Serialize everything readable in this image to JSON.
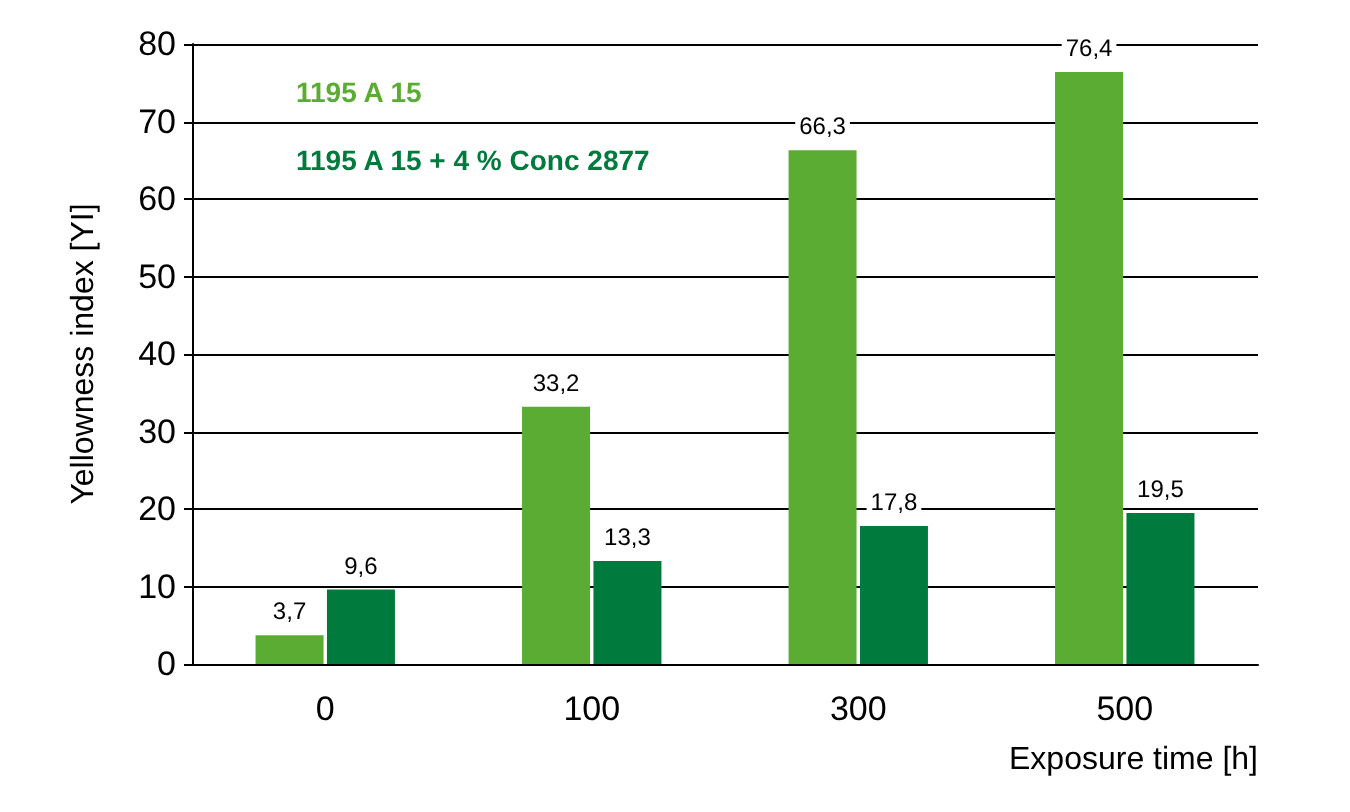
{
  "chart_data": {
    "type": "bar",
    "xlabel": "Exposure time [h]",
    "ylabel": "Yellowness index [YI]",
    "categories": [
      "0",
      "100",
      "300",
      "500"
    ],
    "series": [
      {
        "name": "1195 A 15",
        "color": "#5aad32",
        "values": [
          3.7,
          33.2,
          66.3,
          76.4
        ],
        "value_labels": [
          "3,7",
          "33,2",
          "66,3",
          "76,4"
        ]
      },
      {
        "name": "1195 A 15 + 4 % Conc 2877",
        "color": "#007a3d",
        "values": [
          9.6,
          13.3,
          17.8,
          19.5
        ],
        "value_labels": [
          "9,6",
          "13,3",
          "17,8",
          "19,5"
        ]
      }
    ],
    "ylim": [
      0,
      80
    ],
    "yticks": [
      0,
      10,
      20,
      30,
      40,
      50,
      60,
      70,
      80
    ],
    "grid": "y",
    "legend": "top left"
  }
}
